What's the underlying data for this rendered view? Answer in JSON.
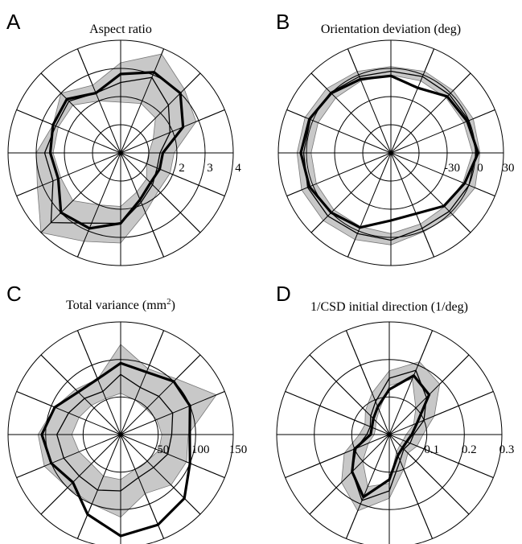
{
  "chart_data": [
    {
      "type": "polar-line",
      "letter": "A",
      "title": "Aspect ratio",
      "rmax": 4,
      "rings": [
        1,
        2,
        3,
        4
      ],
      "ring_labels": [
        {
          "value": 2,
          "text": "2"
        },
        {
          "value": 3,
          "text": "3"
        },
        {
          "value": 4,
          "text": "4"
        }
      ],
      "spokes": 16,
      "directions_deg": [
        0,
        22.5,
        45,
        67.5,
        90,
        112.5,
        135,
        157.5,
        180,
        202.5,
        225,
        247.5,
        270,
        292.5,
        315,
        337.5
      ],
      "band_lower": [
        1.0,
        1.25,
        1.75,
        1.9,
        1.8,
        2.0,
        2.4,
        2.4,
        2.4,
        2.3,
        2.4,
        2.0,
        1.9,
        1.5,
        1.3,
        1.0
      ],
      "band_upper": [
        1.9,
        2.9,
        3.2,
        3.8,
        3.2,
        2.6,
        3.0,
        2.6,
        3.0,
        3.2,
        4.0,
        3.4,
        3.2,
        2.3,
        1.9,
        1.9
      ],
      "mean": [
        1.4,
        1.9,
        2.4,
        2.9,
        2.5,
        2.3,
        2.6,
        2.5,
        2.7,
        2.6,
        3.5,
        2.7,
        2.5,
        1.9,
        1.6,
        1.4
      ],
      "bold": [
        1.5,
        2.4,
        3.0,
        3.1,
        2.8,
        2.3,
        2.7,
        2.6,
        2.5,
        2.4,
        3.0,
        2.9,
        2.5,
        1.8,
        1.5,
        1.5
      ]
    },
    {
      "type": "polar-line",
      "letter": "B",
      "title": "Orientation deviation (deg)",
      "rmin": -90,
      "rmax": 30,
      "rings": [
        -60,
        -30,
        0,
        30
      ],
      "ring_labels": [
        {
          "value": -30,
          "text": "-30"
        },
        {
          "value": 0,
          "text": "0"
        },
        {
          "value": 30,
          "text": "30"
        }
      ],
      "spokes": 16,
      "directions_deg": [
        0,
        22.5,
        45,
        67.5,
        90,
        112.5,
        135,
        157.5,
        180,
        202.5,
        225,
        247.5,
        270,
        292.5,
        315,
        337.5
      ],
      "band_lower": [
        -3,
        -6,
        -7,
        -7,
        -7,
        -7,
        -7,
        -6,
        -5,
        -4,
        -4,
        -5,
        -4,
        -8,
        -9,
        -7
      ],
      "band_upper": [
        5,
        5,
        4,
        4,
        2,
        4,
        7,
        9,
        10,
        13,
        12,
        10,
        8,
        1,
        3,
        7
      ],
      "mean": [
        1,
        0,
        -2,
        -2,
        -3,
        -2,
        1,
        3,
        3,
        6,
        5,
        3,
        3,
        -3,
        -2,
        0
      ],
      "bold": [
        3,
        -2,
        -5,
        -15,
        -8,
        -5,
        0,
        4,
        6,
        4,
        0,
        -4,
        -18,
        -20,
        -10,
        -5
      ]
    },
    {
      "type": "polar-line",
      "letter": "C",
      "title": "Total variance (mm",
      "title_sup": "2",
      "title_end": ")",
      "rmax": 150,
      "rings": [
        50,
        100,
        150
      ],
      "ring_labels": [
        {
          "value": 50,
          "text": "50"
        },
        {
          "value": 100,
          "text": "100"
        },
        {
          "value": 150,
          "text": "150"
        }
      ],
      "spokes": 16,
      "directions_deg": [
        0,
        22.5,
        45,
        67.5,
        90,
        112.5,
        135,
        157.5,
        180,
        202.5,
        225,
        247.5,
        270,
        292.5,
        315,
        337.5
      ],
      "band_lower": [
        55,
        52,
        48,
        50,
        55,
        52,
        55,
        60,
        65,
        60,
        55,
        60,
        60,
        50,
        50,
        55
      ],
      "band_upper": [
        90,
        138,
        105,
        95,
        120,
        80,
        85,
        95,
        110,
        110,
        100,
        100,
        110,
        85,
        95,
        95
      ],
      "mean": [
        68,
        75,
        72,
        68,
        80,
        62,
        68,
        75,
        85,
        82,
        78,
        80,
        75,
        62,
        62,
        68
      ],
      "bold": [
        92,
        100,
        100,
        90,
        95,
        80,
        80,
        95,
        105,
        100,
        90,
        115,
        135,
        130,
        120,
        100
      ]
    },
    {
      "type": "polar-line",
      "letter": "D",
      "title": "1/CSD initial direction (1/deg)",
      "rmax": 0.3,
      "rings": [
        0.1,
        0.2,
        0.3
      ],
      "ring_labels": [
        {
          "value": 0.1,
          "text": "0.1"
        },
        {
          "value": 0.2,
          "text": "0.2"
        },
        {
          "value": 0.3,
          "text": "0.3"
        }
      ],
      "spokes": 16,
      "directions_deg": [
        0,
        22.5,
        45,
        67.5,
        90,
        112.5,
        135,
        157.5,
        180,
        202.5,
        225,
        247.5,
        270,
        292.5,
        315,
        337.5
      ],
      "band_lower": [
        0.045,
        0.07,
        0.1,
        0.16,
        0.13,
        0.07,
        0.05,
        0.04,
        0.04,
        0.06,
        0.1,
        0.15,
        0.13,
        0.05,
        0.04,
        0.04
      ],
      "band_upper": [
        0.09,
        0.13,
        0.19,
        0.21,
        0.17,
        0.12,
        0.09,
        0.07,
        0.08,
        0.13,
        0.18,
        0.22,
        0.17,
        0.1,
        0.07,
        0.08
      ],
      "mean": [
        0.065,
        0.1,
        0.14,
        0.185,
        0.15,
        0.095,
        0.07,
        0.055,
        0.06,
        0.095,
        0.14,
        0.19,
        0.15,
        0.075,
        0.055,
        0.06
      ],
      "bold": [
        0.06,
        0.08,
        0.15,
        0.17,
        0.12,
        0.08,
        0.06,
        0.05,
        0.05,
        0.1,
        0.14,
        0.18,
        0.12,
        0.06,
        0.05,
        0.05
      ]
    }
  ]
}
